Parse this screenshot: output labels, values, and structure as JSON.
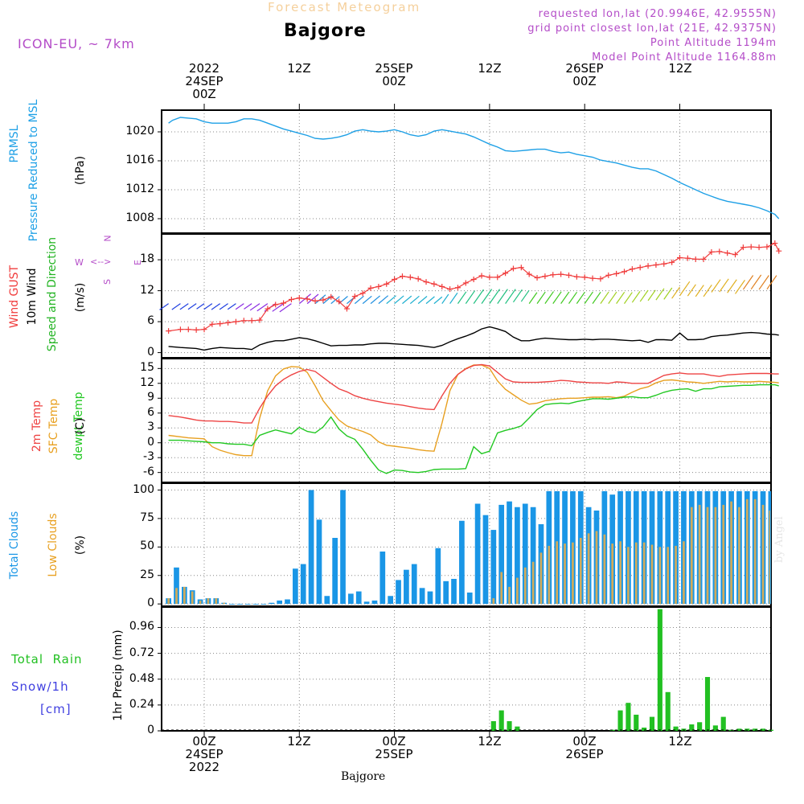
{
  "header": {
    "top_title": "Forecast Meteogram",
    "location": "Bajgore",
    "model": "ICON-EU, ~ 7km",
    "requested": "requested lon,lat (20.9946E, 42.9555N)",
    "grid_point": "grid point closest lon,lat (21E, 42.9375N)",
    "point_altitude": "Point Altitude 1194m",
    "model_altitude": "Model Point Altitude 1164.88m",
    "bottom_label": "Bajgore",
    "watermark": "by Angel"
  },
  "time_axis": {
    "top_labels": [
      {
        "line1": "2022",
        "line2": "24SEP",
        "line3": "00Z"
      },
      {
        "line1": "",
        "line2": "",
        "line3": "12Z"
      },
      {
        "line1": "",
        "line2": "25SEP",
        "line3": "00Z"
      },
      {
        "line1": "",
        "line2": "",
        "line3": "12Z"
      },
      {
        "line1": "",
        "line2": "26SEP",
        "line3": "00Z"
      },
      {
        "line1": "",
        "line2": "",
        "line3": "12Z"
      }
    ],
    "bottom_labels": [
      {
        "line1": "00Z",
        "line2": "24SEP",
        "line3": "2022"
      },
      {
        "line1": "12Z",
        "line2": "",
        "line3": ""
      },
      {
        "line1": "00Z",
        "line2": "25SEP",
        "line3": ""
      },
      {
        "line1": "12Z",
        "line2": "",
        "line3": ""
      },
      {
        "line1": "00Z",
        "line2": "26SEP",
        "line3": ""
      },
      {
        "line1": "12Z",
        "line2": "",
        "line3": ""
      }
    ]
  },
  "panel_labels": {
    "pressure": {
      "l1": "PRMSL",
      "l2": "Pressure Reduced to MSL",
      "unit": "(hPa)"
    },
    "wind": {
      "l1": "Wind GUST",
      "l2": "10m Wind",
      "l3": "Speed and Direction",
      "unit": "(m/s)",
      "compass_ns": "N",
      "compass_s": "S",
      "compass_w": "W",
      "compass_e": "E"
    },
    "temp": {
      "l1": "2m Temp",
      "l2": "SFC Temp",
      "l3": "dewpt Temp",
      "unit": "(C)"
    },
    "clouds": {
      "l1": "Total Clouds",
      "l2": "Low Clouds",
      "unit": "(%)"
    },
    "precip": {
      "l1": "Total  Rain",
      "l2": "Snow/1h",
      "l3": "[cm]",
      "unit": "1hr Precip (mm)"
    }
  },
  "colors": {
    "pressure": "#1ea0e6",
    "gust": "#f03c3c",
    "wind_speed": "#000000",
    "temp2m": "#ee4444",
    "sfc_temp": "#e8a020",
    "dewpt": "#22c822",
    "total_clouds": "#1a96e6",
    "low_clouds": "#d2ab5a",
    "rain": "#22c022",
    "snow": "#4040e0",
    "header_purple": "#b44cc8",
    "title_orange": "#f5d09c"
  },
  "chart_data": [
    {
      "type": "line",
      "name": "pressure",
      "x_hours_from_24SEP00Z": [
        -4.5,
        -4,
        -3,
        -2,
        -1,
        0,
        1,
        2,
        3,
        4,
        5,
        6,
        7,
        8,
        9,
        10,
        11,
        12,
        13,
        14,
        15,
        16,
        17,
        18,
        19,
        20,
        21,
        22,
        23,
        24,
        25,
        26,
        27,
        28,
        29,
        30,
        31,
        32,
        33,
        34,
        35,
        36,
        37,
        38,
        39,
        40,
        41,
        42,
        43,
        44,
        45,
        46,
        47,
        48,
        49,
        50,
        51,
        52,
        53,
        54,
        55,
        56,
        57,
        58,
        59,
        60,
        61,
        62,
        63,
        64,
        65,
        66,
        67,
        68,
        69,
        70,
        71,
        72,
        72.5
      ],
      "values": [
        1021.2,
        1021.6,
        1022.0,
        1021.9,
        1021.8,
        1021.4,
        1021.2,
        1021.2,
        1021.2,
        1021.4,
        1021.8,
        1021.8,
        1021.6,
        1021.2,
        1020.8,
        1020.4,
        1020.1,
        1019.8,
        1019.5,
        1019.1,
        1019.0,
        1019.1,
        1019.3,
        1019.6,
        1020.1,
        1020.3,
        1020.1,
        1020.0,
        1020.1,
        1020.3,
        1020.0,
        1019.6,
        1019.4,
        1019.6,
        1020.1,
        1020.3,
        1020.1,
        1019.9,
        1019.7,
        1019.3,
        1018.8,
        1018.3,
        1017.9,
        1017.4,
        1017.3,
        1017.4,
        1017.5,
        1017.6,
        1017.6,
        1017.3,
        1017.1,
        1017.2,
        1016.9,
        1016.7,
        1016.5,
        1016.1,
        1015.9,
        1015.7,
        1015.4,
        1015.1,
        1014.9,
        1014.9,
        1014.6,
        1014.1,
        1013.6,
        1013.0,
        1012.5,
        1012.0,
        1011.5,
        1011.1,
        1010.7,
        1010.4,
        1010.2,
        1010.0,
        1009.8,
        1009.5,
        1009.1,
        1008.6,
        1008.0,
        1007.8
      ],
      "ylim": [
        1006,
        1023
      ],
      "yticks": [
        1008,
        1012,
        1016,
        1020
      ]
    },
    {
      "type": "line",
      "name": "wind",
      "x_hours_from_24SEP00Z": [
        -4.5,
        -3,
        -2,
        -1,
        0,
        1,
        2,
        3,
        4,
        5,
        6,
        7,
        8,
        9,
        10,
        11,
        12,
        13,
        14,
        15,
        16,
        17,
        18,
        19,
        20,
        21,
        22,
        23,
        24,
        25,
        26,
        27,
        28,
        29,
        30,
        31,
        32,
        33,
        34,
        35,
        36,
        37,
        38,
        39,
        40,
        41,
        42,
        43,
        44,
        45,
        46,
        47,
        48,
        49,
        50,
        51,
        52,
        53,
        54,
        55,
        56,
        57,
        58,
        59,
        60,
        61,
        62,
        63,
        64,
        65,
        66,
        67,
        68,
        69,
        70,
        71,
        72,
        72.5
      ],
      "gust": [
        4.2,
        4.5,
        4.5,
        4.4,
        4.5,
        5.5,
        5.6,
        5.8,
        6.0,
        6.2,
        6.2,
        6.3,
        8.5,
        9.3,
        9.6,
        10.3,
        10.6,
        10.4,
        10.0,
        10.2,
        10.8,
        9.9,
        8.5,
        10.9,
        11.5,
        12.5,
        12.8,
        13.3,
        14.2,
        14.8,
        14.6,
        14.3,
        13.7,
        13.3,
        12.8,
        12.3,
        12.6,
        13.5,
        14.2,
        14.9,
        14.6,
        14.6,
        15.4,
        16.3,
        16.5,
        15.2,
        14.5,
        14.8,
        15.1,
        15.2,
        15.0,
        14.7,
        14.6,
        14.4,
        14.3,
        15.0,
        15.3,
        15.7,
        16.2,
        16.5,
        16.8,
        17.0,
        17.2,
        17.5,
        18.4,
        18.3,
        18.1,
        18.1,
        19.5,
        19.6,
        19.3,
        19.0,
        20.4,
        20.5,
        20.4,
        20.5,
        21.2,
        19.7
      ],
      "speed": [
        1.2,
        1.0,
        0.9,
        0.8,
        0.5,
        0.8,
        1.0,
        0.9,
        0.8,
        0.8,
        0.6,
        1.5,
        2.0,
        2.3,
        2.3,
        2.6,
        2.9,
        2.7,
        2.3,
        1.8,
        1.3,
        1.4,
        1.4,
        1.5,
        1.5,
        1.7,
        1.8,
        1.8,
        1.7,
        1.6,
        1.5,
        1.4,
        1.2,
        1.0,
        1.4,
        2.1,
        2.7,
        3.2,
        3.8,
        4.6,
        5.0,
        4.6,
        4.1,
        3.0,
        2.3,
        2.3,
        2.6,
        2.8,
        2.7,
        2.6,
        2.5,
        2.5,
        2.6,
        2.5,
        2.6,
        2.6,
        2.5,
        2.4,
        2.3,
        2.4,
        2.0,
        2.5,
        2.5,
        2.4,
        3.8,
        2.5,
        2.5,
        2.6,
        3.1,
        3.3,
        3.4,
        3.6,
        3.8,
        3.9,
        3.8,
        3.6,
        3.5,
        3.4
      ],
      "ylim": [
        -1,
        23
      ],
      "yticks": [
        0,
        6,
        12,
        18
      ]
    },
    {
      "type": "line",
      "name": "temperature",
      "x_hours_from_24SEP00Z": [
        -4.5,
        -3,
        -2,
        -1,
        0,
        1,
        2,
        3,
        4,
        5,
        6,
        7,
        8,
        9,
        10,
        11,
        12,
        13,
        14,
        15,
        16,
        17,
        18,
        19,
        20,
        21,
        22,
        23,
        24,
        25,
        26,
        27,
        28,
        29,
        30,
        31,
        32,
        33,
        34,
        35,
        36,
        37,
        38,
        39,
        40,
        41,
        42,
        43,
        44,
        45,
        46,
        47,
        48,
        49,
        50,
        51,
        52,
        53,
        54,
        55,
        56,
        57,
        58,
        59,
        60,
        61,
        62,
        63,
        64,
        65,
        66,
        67,
        68,
        69,
        70,
        71,
        72,
        72.5
      ],
      "t2m": [
        5.5,
        5.2,
        4.9,
        4.6,
        4.4,
        4.4,
        4.3,
        4.3,
        4.2,
        4.0,
        4.0,
        7.0,
        9.5,
        11.5,
        12.8,
        13.7,
        14.4,
        14.8,
        14.4,
        13.2,
        12.0,
        10.9,
        10.3,
        9.5,
        9.0,
        8.6,
        8.3,
        8.0,
        7.8,
        7.6,
        7.3,
        7.0,
        6.8,
        6.7,
        9.5,
        12.0,
        13.8,
        14.9,
        15.6,
        15.8,
        15.5,
        14.2,
        12.9,
        12.3,
        12.2,
        12.2,
        12.2,
        12.3,
        12.4,
        12.6,
        12.5,
        12.3,
        12.2,
        12.1,
        12.1,
        12.0,
        12.3,
        12.2,
        12.0,
        12.0,
        12.0,
        12.8,
        13.6,
        13.9,
        14.1,
        13.9,
        13.9,
        13.9,
        13.6,
        13.4,
        13.7,
        13.8,
        13.9,
        14.0,
        14.0,
        14.0,
        13.9,
        13.9
      ],
      "sfc": [
        1.5,
        1.2,
        1.0,
        0.9,
        0.8,
        -0.8,
        -1.5,
        -2.0,
        -2.4,
        -2.6,
        -2.6,
        5.0,
        10.5,
        13.5,
        14.9,
        15.4,
        15.3,
        14.2,
        11.5,
        8.5,
        6.5,
        4.6,
        3.4,
        2.8,
        2.3,
        1.6,
        0.2,
        -0.5,
        -0.7,
        -0.9,
        -1.1,
        -1.4,
        -1.6,
        -1.7,
        4.0,
        10.5,
        13.8,
        15.0,
        15.7,
        15.7,
        15.0,
        12.5,
        10.8,
        9.7,
        8.6,
        7.8,
        8.0,
        8.5,
        8.7,
        8.9,
        9.0,
        9.0,
        9.1,
        9.2,
        9.2,
        9.3,
        9.1,
        9.4,
        10.2,
        10.9,
        11.3,
        12.1,
        12.6,
        12.7,
        12.5,
        12.3,
        12.2,
        12.0,
        12.2,
        12.4,
        12.3,
        12.4,
        12.3,
        12.3,
        12.4,
        12.3,
        12.2,
        12.1
      ],
      "dewpt": [
        0.5,
        0.5,
        0.4,
        0.3,
        0.2,
        0.0,
        0.0,
        -0.2,
        -0.3,
        -0.3,
        -0.6,
        1.5,
        2.1,
        2.6,
        2.2,
        1.8,
        3.1,
        2.3,
        2.0,
        3.2,
        5.2,
        2.8,
        1.4,
        0.7,
        -1.3,
        -3.5,
        -5.5,
        -6.2,
        -5.5,
        -5.6,
        -5.9,
        -6.0,
        -5.8,
        -5.4,
        -5.3,
        -5.3,
        -5.3,
        -5.2,
        -0.8,
        -2.2,
        -1.7,
        2.0,
        2.5,
        2.9,
        3.4,
        5.0,
        6.7,
        7.7,
        7.9,
        8.0,
        7.9,
        8.3,
        8.6,
        8.9,
        8.9,
        8.8,
        9.0,
        9.2,
        9.3,
        9.1,
        9.1,
        9.6,
        10.2,
        10.6,
        10.8,
        10.9,
        10.4,
        10.9,
        10.9,
        11.3,
        11.4,
        11.5,
        11.6,
        11.6,
        11.7,
        11.7,
        11.7,
        11.5
      ],
      "ylim": [
        -8,
        17
      ],
      "yticks": [
        -6,
        -3,
        0,
        3,
        6,
        9,
        12,
        15
      ]
    },
    {
      "type": "bar",
      "name": "clouds",
      "x_hours_from_24SEP00Z": [
        -4.5,
        -3.5,
        -2.5,
        -1.5,
        -0.5,
        0.5,
        1.5,
        2.5,
        3.5,
        4.5,
        5.5,
        6.5,
        7.5,
        8.5,
        9.5,
        10.5,
        11.5,
        12.5,
        13.5,
        14.5,
        15.5,
        16.5,
        17.5,
        18.5,
        19.5,
        20.5,
        21.5,
        22.5,
        23.5,
        24.5,
        25.5,
        26.5,
        27.5,
        28.5,
        29.5,
        30.5,
        31.5,
        32.5,
        33.5,
        34.5,
        35.5,
        36.5,
        37.5,
        38.5,
        39.5,
        40.5,
        41.5,
        42.5,
        43.5,
        44.5,
        45.5,
        46.5,
        47.5,
        48.5,
        49.5,
        50.5,
        51.5,
        52.5,
        53.5,
        54.5,
        55.5,
        56.5,
        57.5,
        58.5,
        59.5,
        60.5,
        61.5,
        62.5,
        63.5,
        64.5,
        65.5,
        66.5,
        67.5,
        68.5,
        69.5,
        70.5,
        71.5,
        72.5
      ],
      "total": [
        5,
        32,
        15,
        12,
        4,
        5,
        5,
        1,
        0,
        0,
        0,
        0,
        0,
        1,
        3,
        4,
        31,
        35,
        100,
        74,
        7,
        58,
        100,
        9,
        11,
        2,
        3,
        46,
        7,
        21,
        30,
        35,
        14,
        11,
        49,
        20,
        22,
        73,
        10,
        88,
        78,
        65,
        87,
        90,
        85,
        88,
        85,
        70,
        99,
        99,
        99,
        99,
        99,
        85,
        82,
        99,
        96,
        99,
        99,
        99,
        99,
        99,
        99,
        99,
        99,
        99,
        99,
        99,
        99,
        99,
        99,
        99,
        99,
        99,
        99,
        99,
        99,
        99
      ],
      "low": [
        5,
        14,
        15,
        11,
        3,
        5,
        5,
        1,
        0,
        0,
        0,
        0,
        0,
        0,
        0,
        0,
        0,
        0,
        0,
        0,
        0,
        0,
        0,
        0,
        0,
        0,
        0,
        0,
        0,
        0,
        0,
        0,
        0,
        0,
        0,
        0,
        0,
        0,
        0,
        0,
        0,
        5,
        28,
        15,
        23,
        32,
        37,
        45,
        51,
        55,
        53,
        54,
        58,
        62,
        64,
        61,
        53,
        55,
        50,
        54,
        54,
        52,
        50,
        50,
        51,
        55,
        85,
        87,
        85,
        85,
        87,
        90,
        85,
        92,
        92,
        87,
        82,
        82
      ],
      "ylim": [
        -2,
        106
      ],
      "yticks": [
        0,
        25,
        50,
        75,
        100
      ]
    },
    {
      "type": "bar",
      "name": "precip",
      "x_hours_from_24SEP00Z": [
        36.5,
        37.5,
        38.5,
        39.5,
        51.5,
        52.5,
        53.5,
        54.5,
        55.5,
        56.5,
        57.5,
        58.5,
        59.5,
        60.5,
        61.5,
        62.5,
        63.5,
        64.5,
        65.5,
        66.5,
        67.5,
        68.5,
        69.5,
        70.5,
        71.5
      ],
      "rain": [
        0.09,
        0.19,
        0.09,
        0.04,
        0.01,
        0.19,
        0.26,
        0.15,
        0.03,
        0.13,
        1.13,
        0.36,
        0.04,
        0.02,
        0.06,
        0.08,
        0.5,
        0.05,
        0.13,
        0.01,
        0.02,
        0.02,
        0.02,
        0.02,
        0.01
      ],
      "ylim": [
        0,
        1.15
      ],
      "yticks": [
        0,
        0.24,
        0.48,
        0.72,
        0.96
      ],
      "ytick_labels": [
        "0",
        "0.24",
        "0.48",
        "0.72",
        "0.96"
      ]
    }
  ]
}
